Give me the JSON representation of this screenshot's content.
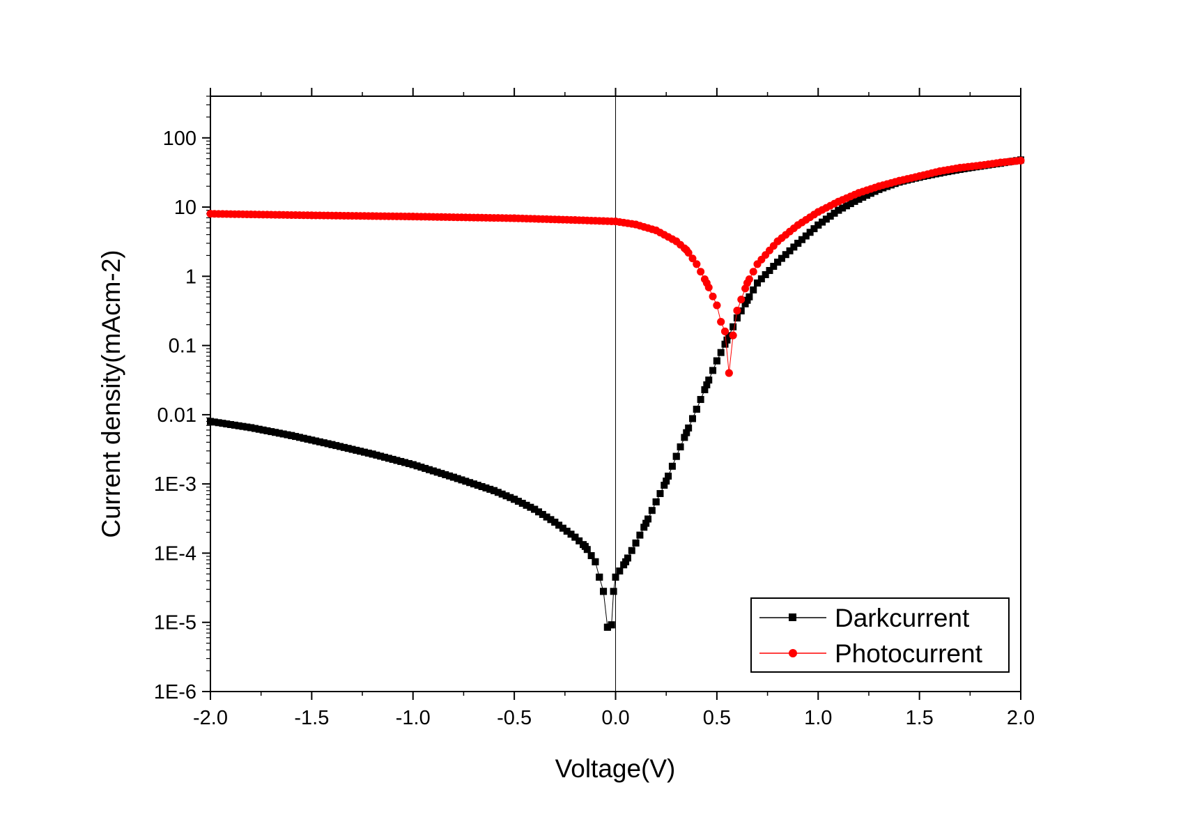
{
  "chart_data": {
    "type": "scatter",
    "xlabel": "Voltage(V)",
    "ylabel": "Current density(mAcm-2)",
    "xlim": [
      -2.0,
      2.0
    ],
    "ylim": [
      1e-06,
      400
    ],
    "yscale": "log",
    "x_ticks": [
      -2.0,
      -1.5,
      -1.0,
      -0.5,
      0.0,
      0.5,
      1.0,
      1.5,
      2.0
    ],
    "x_tick_labels": [
      "-2.0",
      "-1.5",
      "-1.0",
      "-0.5",
      "0.0",
      "0.5",
      "1.0",
      "1.5",
      "2.0"
    ],
    "y_ticks": [
      1e-06,
      1e-05,
      0.0001,
      0.001,
      0.01,
      0.1,
      1,
      10,
      100
    ],
    "y_tick_labels": [
      "1E-6",
      "1E-5",
      "1E-4",
      "1E-3",
      "0.01",
      "0.1",
      "1",
      "10",
      "100"
    ],
    "grid": false,
    "zero_line": true,
    "legend_position": "bottom-right",
    "series": [
      {
        "name": "Darkcurrent",
        "color": "#000000",
        "marker": "square",
        "anchors": [
          [
            -2.0,
            0.008
          ],
          [
            -1.8,
            0.0065
          ],
          [
            -1.6,
            0.005
          ],
          [
            -1.4,
            0.0037
          ],
          [
            -1.2,
            0.0027
          ],
          [
            -1.0,
            0.0019
          ],
          [
            -0.8,
            0.00125
          ],
          [
            -0.6,
            0.0008
          ],
          [
            -0.5,
            0.0006
          ],
          [
            -0.4,
            0.00043
          ],
          [
            -0.3,
            0.00028
          ],
          [
            -0.2,
            0.00017
          ],
          [
            -0.15,
            0.000125
          ],
          [
            -0.1,
            7.5e-05
          ],
          [
            -0.08,
            4.5e-05
          ],
          [
            -0.06,
            2.8e-05
          ],
          [
            -0.04,
            8.5e-06
          ],
          [
            -0.02,
            9.2e-06
          ],
          [
            -0.01,
            2.8e-05
          ],
          [
            0.0,
            4.5e-05
          ],
          [
            0.05,
            7.5e-05
          ],
          [
            0.1,
            0.00014
          ],
          [
            0.15,
            0.00027
          ],
          [
            0.2,
            0.00055
          ],
          [
            0.25,
            0.0011
          ],
          [
            0.3,
            0.0025
          ],
          [
            0.35,
            0.0055
          ],
          [
            0.4,
            0.012
          ],
          [
            0.45,
            0.027
          ],
          [
            0.5,
            0.06
          ],
          [
            0.55,
            0.12
          ],
          [
            0.6,
            0.25
          ],
          [
            0.65,
            0.45
          ],
          [
            0.7,
            0.8
          ],
          [
            0.8,
            1.6
          ],
          [
            0.9,
            3.0
          ],
          [
            1.0,
            5.5
          ],
          [
            1.1,
            9.0
          ],
          [
            1.2,
            13.0
          ],
          [
            1.3,
            18.0
          ],
          [
            1.4,
            23.0
          ],
          [
            1.5,
            27.0
          ],
          [
            1.6,
            31.0
          ],
          [
            1.7,
            35.0
          ],
          [
            1.8,
            39.0
          ],
          [
            1.9,
            43.0
          ],
          [
            2.0,
            48.0
          ]
        ]
      },
      {
        "name": "Photocurrent",
        "color": "#ff0000",
        "marker": "circle",
        "anchors": [
          [
            -2.0,
            8.0
          ],
          [
            -1.5,
            7.6
          ],
          [
            -1.0,
            7.3
          ],
          [
            -0.5,
            6.9
          ],
          [
            -0.2,
            6.5
          ],
          [
            0.0,
            6.2
          ],
          [
            0.1,
            5.6
          ],
          [
            0.2,
            4.6
          ],
          [
            0.3,
            3.2
          ],
          [
            0.35,
            2.4
          ],
          [
            0.4,
            1.5
          ],
          [
            0.45,
            0.8
          ],
          [
            0.5,
            0.38
          ],
          [
            0.52,
            0.22
          ],
          [
            0.54,
            0.16
          ],
          [
            0.56,
            0.04
          ],
          [
            0.58,
            0.14
          ],
          [
            0.6,
            0.32
          ],
          [
            0.65,
            0.8
          ],
          [
            0.7,
            1.5
          ],
          [
            0.8,
            3.2
          ],
          [
            0.9,
            5.5
          ],
          [
            1.0,
            8.5
          ],
          [
            1.1,
            12.0
          ],
          [
            1.2,
            16.0
          ],
          [
            1.3,
            20.0
          ],
          [
            1.4,
            24.0
          ],
          [
            1.5,
            28.0
          ],
          [
            1.6,
            33.0
          ],
          [
            1.7,
            37.0
          ],
          [
            1.8,
            40.0
          ],
          [
            1.9,
            44.0
          ],
          [
            2.0,
            47.0
          ]
        ]
      }
    ]
  }
}
